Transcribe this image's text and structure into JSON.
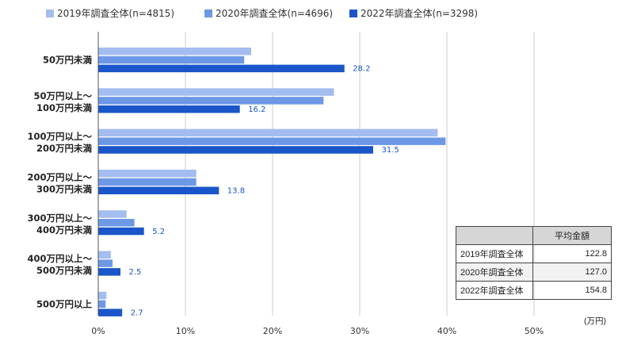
{
  "chart_data": {
    "type": "bar",
    "orientation": "horizontal",
    "categories": [
      [
        "50万円未満"
      ],
      [
        "50万円以上～",
        "100万円未満"
      ],
      [
        "100万円以上～",
        "200万円未満"
      ],
      [
        "200万円以上～",
        "300万円未満"
      ],
      [
        "300万円以上～",
        "400万円未満"
      ],
      [
        "400万円以上～",
        "500万円未満"
      ],
      [
        "500万円以上"
      ]
    ],
    "series": [
      {
        "name": "2019年調査全体(n=4815)",
        "color": "#a4bdf0",
        "values": [
          17.5,
          27.0,
          38.9,
          11.2,
          3.2,
          1.4,
          0.9
        ]
      },
      {
        "name": "2020年調査全体(n=4696)",
        "color": "#6d98e6",
        "values": [
          16.7,
          25.8,
          39.8,
          11.2,
          4.1,
          1.6,
          0.8
        ]
      },
      {
        "name": "2022年調査全体(n=3298)",
        "color": "#1a56c9",
        "values": [
          28.2,
          16.2,
          31.5,
          13.8,
          5.2,
          2.5,
          2.7
        ]
      }
    ],
    "data_labels": [
      "28.2",
      "16.2",
      "31.5",
      "13.8",
      "5.2",
      "2.5",
      "2.7"
    ],
    "xlim": [
      0,
      50
    ],
    "xticks": [
      "0%",
      "10%",
      "20%",
      "30%",
      "40%",
      "50%"
    ],
    "grid": true,
    "legend_position": "top"
  },
  "table": {
    "header": [
      "",
      "平均金額"
    ],
    "rows": [
      [
        "2019年調査全体",
        "122.8"
      ],
      [
        "2020年調査全体",
        "127.0"
      ],
      [
        "2022年調査全体",
        "154.8"
      ]
    ],
    "unit": "(万円)"
  }
}
